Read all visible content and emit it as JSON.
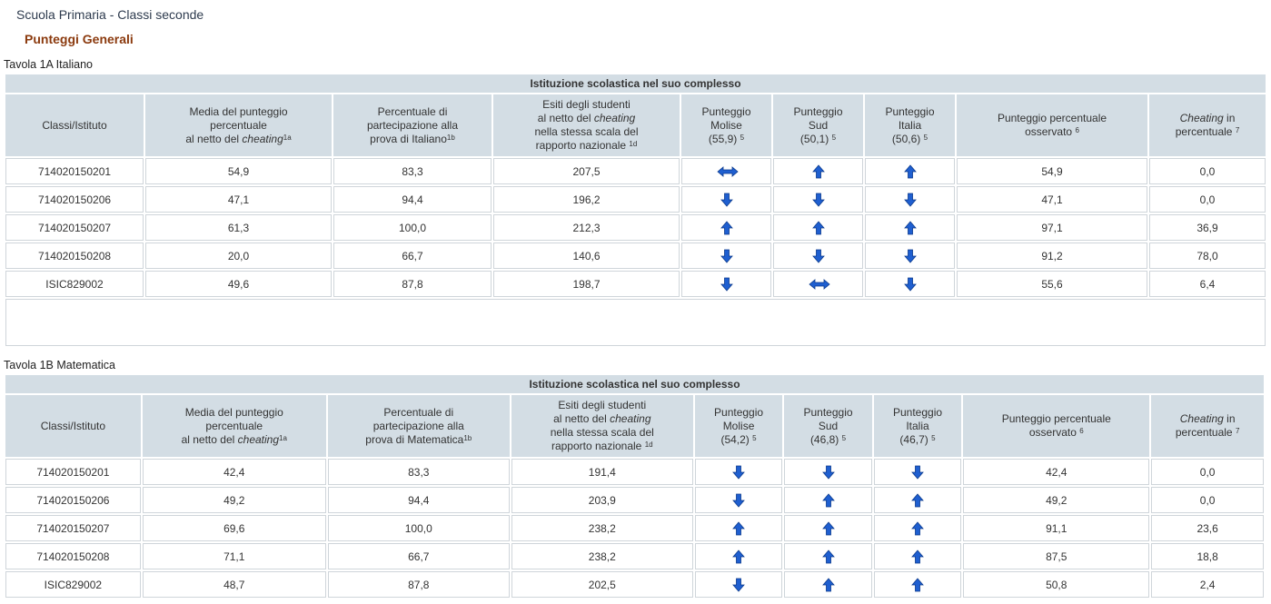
{
  "header": {
    "title": "Scuola Primaria - Classi seconde",
    "subtitle": "Punteggi Generali"
  },
  "colors": {
    "arrow": "#1f5fd0",
    "header_bg": "#d3dde4",
    "subtitle": "#8b3a0e"
  },
  "tables": [
    {
      "caption": "Tavola 1A Italiano",
      "banner": "Istituzione scolastica nel suo complesso",
      "headers": {
        "classi": "Classi/Istituto",
        "media_a": "Media del punteggio",
        "media_b": "percentuale",
        "media_c": "al netto del",
        "media_d": "cheating",
        "media_sup": "1a",
        "part_a": "Percentuale di",
        "part_b": "partecipazione alla",
        "part_c": "prova di Italiano",
        "part_sup": "1b",
        "esiti_a": "Esiti degli studenti",
        "esiti_b": "al netto del",
        "esiti_c": "cheating",
        "esiti_d": "nella stessa scala del",
        "esiti_e": "rapporto nazionale",
        "esiti_sup": "1d",
        "reg_a": "Punteggio",
        "reg_b": "Molise",
        "reg_c": "(55,9)",
        "reg_sup": "5",
        "sud_a": "Punteggio",
        "sud_b": "Sud",
        "sud_c": "(50,1)",
        "sud_sup": "5",
        "ita_a": "Punteggio",
        "ita_b": "Italia",
        "ita_c": "(50,6)",
        "ita_sup": "5",
        "oss_a": "Punteggio percentuale",
        "oss_b": "osservato",
        "oss_sup": "6",
        "cheat_a": "Cheating",
        "cheat_b": "in",
        "cheat_c": "percentuale",
        "cheat_sup": "7"
      },
      "rows": [
        {
          "id": "714020150201",
          "media": "54,9",
          "part": "83,3",
          "esiti": "207,5",
          "reg": "equal",
          "sud": "up",
          "ita": "up",
          "oss": "54,9",
          "cheat": "0,0"
        },
        {
          "id": "714020150206",
          "media": "47,1",
          "part": "94,4",
          "esiti": "196,2",
          "reg": "down",
          "sud": "down",
          "ita": "down",
          "oss": "47,1",
          "cheat": "0,0"
        },
        {
          "id": "714020150207",
          "media": "61,3",
          "part": "100,0",
          "esiti": "212,3",
          "reg": "up",
          "sud": "up",
          "ita": "up",
          "oss": "97,1",
          "cheat": "36,9"
        },
        {
          "id": "714020150208",
          "media": "20,0",
          "part": "66,7",
          "esiti": "140,6",
          "reg": "down",
          "sud": "down",
          "ita": "down",
          "oss": "91,2",
          "cheat": "78,0"
        },
        {
          "id": "ISIC829002",
          "media": "49,6",
          "part": "87,8",
          "esiti": "198,7",
          "reg": "down",
          "sud": "equal",
          "ita": "down",
          "oss": "55,6",
          "cheat": "6,4"
        }
      ]
    },
    {
      "caption": "Tavola 1B Matematica",
      "banner": "Istituzione scolastica nel suo complesso",
      "headers": {
        "classi": "Classi/Istituto",
        "media_a": "Media del punteggio",
        "media_b": "percentuale",
        "media_c": "al netto del",
        "media_d": "cheating",
        "media_sup": "1a",
        "part_a": "Percentuale di",
        "part_b": "partecipazione alla",
        "part_c": "prova di Matematica",
        "part_sup": "1b",
        "esiti_a": "Esiti degli studenti",
        "esiti_b": "al netto del",
        "esiti_c": "cheating",
        "esiti_d": "nella stessa scala del",
        "esiti_e": "rapporto nazionale",
        "esiti_sup": "1d",
        "reg_a": "Punteggio",
        "reg_b": "Molise",
        "reg_c": "(54,2)",
        "reg_sup": "5",
        "sud_a": "Punteggio",
        "sud_b": "Sud",
        "sud_c": "(46,8)",
        "sud_sup": "5",
        "ita_a": "Punteggio",
        "ita_b": "Italia",
        "ita_c": "(46,7)",
        "ita_sup": "5",
        "oss_a": "Punteggio percentuale",
        "oss_b": "osservato",
        "oss_sup": "6",
        "cheat_a": "Cheating",
        "cheat_b": "in",
        "cheat_c": "percentuale",
        "cheat_sup": "7"
      },
      "rows": [
        {
          "id": "714020150201",
          "media": "42,4",
          "part": "83,3",
          "esiti": "191,4",
          "reg": "down",
          "sud": "down",
          "ita": "down",
          "oss": "42,4",
          "cheat": "0,0"
        },
        {
          "id": "714020150206",
          "media": "49,2",
          "part": "94,4",
          "esiti": "203,9",
          "reg": "down",
          "sud": "up",
          "ita": "up",
          "oss": "49,2",
          "cheat": "0,0"
        },
        {
          "id": "714020150207",
          "media": "69,6",
          "part": "100,0",
          "esiti": "238,2",
          "reg": "up",
          "sud": "up",
          "ita": "up",
          "oss": "91,1",
          "cheat": "23,6"
        },
        {
          "id": "714020150208",
          "media": "71,1",
          "part": "66,7",
          "esiti": "238,2",
          "reg": "up",
          "sud": "up",
          "ita": "up",
          "oss": "87,5",
          "cheat": "18,8"
        },
        {
          "id": "ISIC829002",
          "media": "48,7",
          "part": "87,8",
          "esiti": "202,5",
          "reg": "down",
          "sud": "up",
          "ita": "up",
          "oss": "50,8",
          "cheat": "2,4"
        }
      ]
    }
  ]
}
